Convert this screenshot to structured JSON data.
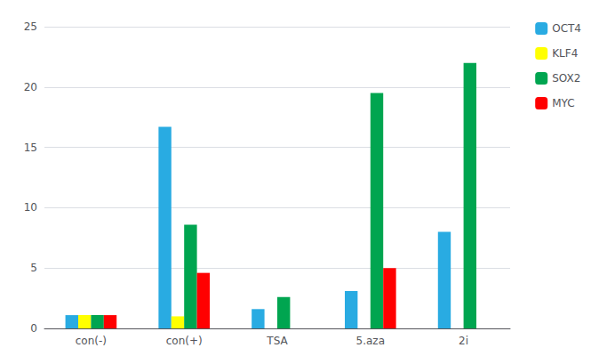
{
  "chart_data": {
    "type": "bar",
    "categories": [
      "con(-)",
      "con(+)",
      "TSA",
      "5.aza",
      "2i"
    ],
    "series": [
      {
        "name": "OCT4",
        "color": "#29ABE2",
        "values": [
          1.1,
          16.7,
          1.6,
          3.1,
          8.0
        ]
      },
      {
        "name": "KLF4",
        "color": "#FFFF00",
        "values": [
          1.1,
          1.0,
          0.0,
          0.0,
          0.0
        ]
      },
      {
        "name": "SOX2",
        "color": "#00A550",
        "values": [
          1.1,
          8.6,
          2.6,
          19.5,
          22.0
        ]
      },
      {
        "name": "MYC",
        "color": "#FF0000",
        "values": [
          1.1,
          4.6,
          0.0,
          5.0,
          0.0
        ]
      }
    ],
    "ylim": [
      0,
      25
    ],
    "yticks": [
      0,
      5,
      10,
      15,
      20,
      25
    ],
    "grid": true,
    "legend": "right"
  }
}
